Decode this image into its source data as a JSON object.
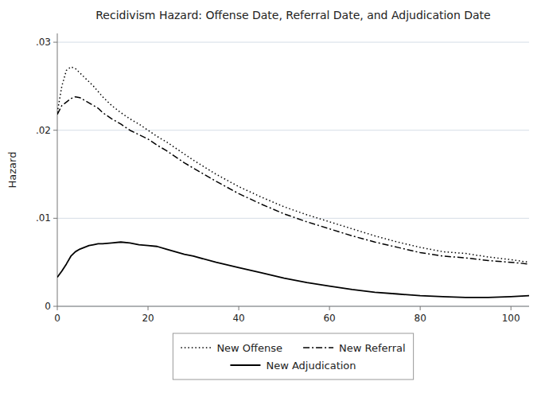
{
  "chart_data": {
    "type": "line",
    "title": "Recidivism Hazard: Offense Date, Referral Date, and Adjudication Date",
    "ylabel": "Hazard",
    "x": [
      0,
      1,
      2,
      3,
      4,
      5,
      6,
      7,
      8,
      9,
      10,
      12,
      14,
      16,
      18,
      20,
      22,
      24,
      26,
      28,
      30,
      35,
      40,
      45,
      50,
      55,
      60,
      65,
      70,
      75,
      80,
      85,
      90,
      95,
      100,
      104
    ],
    "series": [
      {
        "name": "New Offense",
        "color": "#000000",
        "line_style": "dotted",
        "values": [
          0.022,
          0.025,
          0.0268,
          0.0272,
          0.027,
          0.0265,
          0.026,
          0.0255,
          0.025,
          0.0244,
          0.0238,
          0.0228,
          0.022,
          0.0213,
          0.0207,
          0.02,
          0.0193,
          0.0187,
          0.018,
          0.0173,
          0.0166,
          0.015,
          0.0136,
          0.0124,
          0.0113,
          0.0104,
          0.0096,
          0.0088,
          0.008,
          0.0073,
          0.0067,
          0.0062,
          0.006,
          0.0056,
          0.0053,
          0.005
        ]
      },
      {
        "name": "New Referral",
        "color": "#000000",
        "line_style": "dashdot",
        "values": [
          0.0218,
          0.0228,
          0.0232,
          0.0236,
          0.0238,
          0.0237,
          0.0234,
          0.0231,
          0.0228,
          0.0225,
          0.022,
          0.0213,
          0.0207,
          0.02,
          0.0195,
          0.019,
          0.0183,
          0.0177,
          0.017,
          0.0163,
          0.0157,
          0.0142,
          0.0128,
          0.0116,
          0.0105,
          0.0096,
          0.0088,
          0.008,
          0.0073,
          0.0067,
          0.0061,
          0.0057,
          0.0055,
          0.0052,
          0.005,
          0.0048
        ]
      },
      {
        "name": "New Adjudication",
        "color": "#000000",
        "line_style": "solid",
        "values": [
          0.0033,
          0.004,
          0.0048,
          0.0057,
          0.0062,
          0.0065,
          0.0067,
          0.0069,
          0.007,
          0.0071,
          0.0071,
          0.0072,
          0.0073,
          0.0072,
          0.007,
          0.0069,
          0.0068,
          0.0065,
          0.0062,
          0.0059,
          0.0057,
          0.005,
          0.0044,
          0.0038,
          0.0032,
          0.0027,
          0.0023,
          0.0019,
          0.0016,
          0.0014,
          0.0012,
          0.0011,
          0.001,
          0.001,
          0.0011,
          0.0012
        ]
      }
    ],
    "xlim": [
      0,
      104
    ],
    "xticks": [
      0,
      20,
      40,
      60,
      80,
      100
    ],
    "ylim": [
      0,
      0.031
    ],
    "yticks": [
      0,
      {
        "value": 0.01,
        "label": ".01"
      },
      {
        "value": 0.02,
        "label": ".02"
      },
      {
        "value": 0.03,
        "label": ".03"
      }
    ],
    "grid": true,
    "legend": "bottom"
  }
}
